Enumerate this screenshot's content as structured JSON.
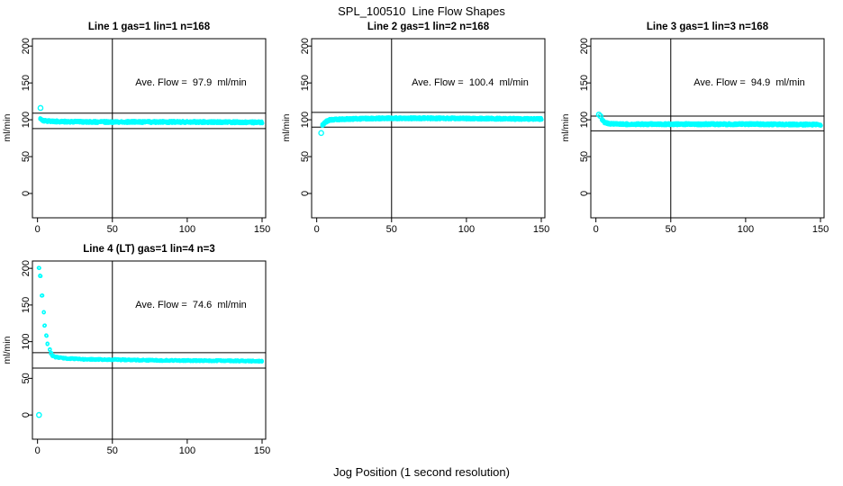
{
  "figure": {
    "title": "SPL_100510  Line Flow Shapes",
    "xlabel": "Jog Position (1 second resolution)",
    "ylabel": "ml/min",
    "background_color": "#ffffff",
    "axis_color": "#000000",
    "point_color": "#00ffff"
  },
  "chart_data": {
    "type": "scatter",
    "title": "SPL_100510  Line Flow Shapes",
    "xlabel": "Jog Position (1 second resolution)",
    "ylabel": "ml/min",
    "marker": "open-circle",
    "marker_color": "#00ffff",
    "grid": false,
    "x_ticks": [
      0,
      50,
      100,
      150
    ],
    "y_ticks": [
      0,
      50,
      100,
      150,
      200
    ],
    "xlim": [
      -3.4,
      152.4
    ],
    "ylim": [
      -33,
      210
    ],
    "vline_x": 50,
    "panels": [
      {
        "title": "Line 1 gas=1 lin=1 n=168",
        "annotation": "Ave. Flow =  97.9  ml/min",
        "ave_flow_ml_min": 97.9,
        "n_jogs": 168,
        "ref_lines": [
          109,
          88
        ],
        "outliers": [
          [
            2,
            116
          ]
        ],
        "profile": [
          [
            2,
            101
          ],
          [
            4,
            99
          ],
          [
            8,
            98
          ],
          [
            15,
            97.5
          ],
          [
            40,
            97
          ],
          [
            100,
            97
          ],
          [
            150,
            96.5
          ]
        ],
        "band_halfwidth": 1.5,
        "points_per_x": 6
      },
      {
        "title": "Line 2 gas=1 lin=2 n=168",
        "annotation": "Ave. Flow =  100.4  ml/min",
        "ave_flow_ml_min": 100.4,
        "n_jogs": 168,
        "ref_lines": [
          110,
          90
        ],
        "outliers": [
          [
            3,
            82
          ]
        ],
        "profile": [
          [
            4,
            93
          ],
          [
            6,
            97
          ],
          [
            9,
            100
          ],
          [
            20,
            101
          ],
          [
            45,
            102
          ],
          [
            80,
            102
          ],
          [
            150,
            101
          ]
        ],
        "band_halfwidth": 1.5,
        "points_per_x": 6
      },
      {
        "title": "Line 3 gas=1 lin=3 n=168",
        "annotation": "Ave. Flow =  94.9  ml/min",
        "ave_flow_ml_min": 94.9,
        "n_jogs": 168,
        "ref_lines": [
          105,
          85
        ],
        "outliers": [
          [
            2,
            107
          ],
          [
            3,
            105
          ]
        ],
        "profile": [
          [
            4,
            100
          ],
          [
            6,
            96
          ],
          [
            9,
            94.5
          ],
          [
            15,
            94
          ],
          [
            40,
            94
          ],
          [
            100,
            94
          ],
          [
            150,
            93.5
          ]
        ],
        "band_halfwidth": 1.5,
        "points_per_x": 6
      },
      {
        "title": "Line 4 (LT) gas=1 lin=4 n=3",
        "annotation": "Ave. Flow =  74.6  ml/min",
        "ave_flow_ml_min": 74.6,
        "n_jogs": 3,
        "ref_lines": [
          85,
          64
        ],
        "outliers": [
          [
            1,
            0
          ]
        ],
        "profile": [
          [
            1,
            201
          ],
          [
            2,
            190
          ],
          [
            3,
            163
          ],
          [
            4,
            140
          ],
          [
            5,
            122
          ],
          [
            6,
            108
          ],
          [
            7,
            97
          ],
          [
            8,
            89
          ],
          [
            9,
            84
          ],
          [
            10,
            81
          ],
          [
            12,
            79
          ],
          [
            15,
            78
          ],
          [
            20,
            77
          ],
          [
            30,
            76
          ],
          [
            50,
            75.5
          ],
          [
            80,
            74.5
          ],
          [
            120,
            74
          ],
          [
            150,
            73.5
          ]
        ],
        "band_halfwidth": 0.8,
        "points_per_x": 3
      }
    ]
  }
}
